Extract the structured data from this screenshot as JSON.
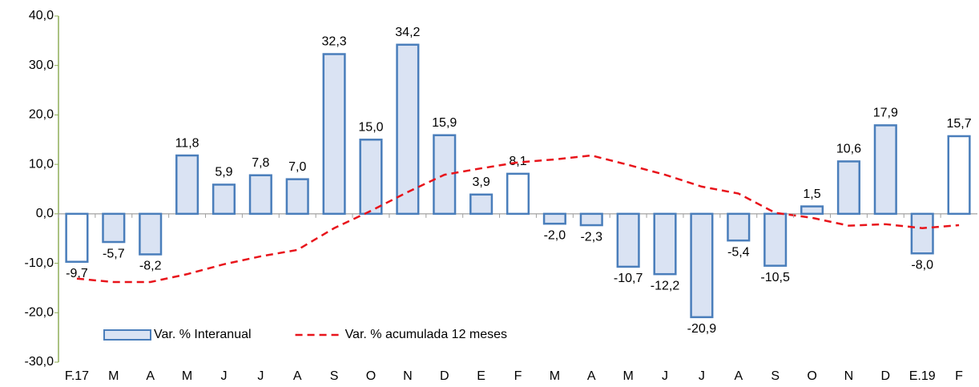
{
  "chart_data": {
    "type": "bar_line",
    "categories": [
      "F.17",
      "M",
      "A",
      "M",
      "J",
      "J",
      "A",
      "S",
      "O",
      "N",
      "D",
      "E",
      "F",
      "M",
      "A",
      "M",
      "J",
      "J",
      "A",
      "S",
      "O",
      "N",
      "D",
      "E.19",
      "F"
    ],
    "series": [
      {
        "name": "Var. % Interanual",
        "type": "bar",
        "color": "#4a7ebb",
        "fills": [
          "#ffffff",
          "#dae3f3",
          "#dae3f3",
          "#dae3f3",
          "#dae3f3",
          "#dae3f3",
          "#dae3f3",
          "#dae3f3",
          "#dae3f3",
          "#dae3f3",
          "#dae3f3",
          "#dae3f3",
          "#ffffff",
          "#dae3f3",
          "#dae3f3",
          "#dae3f3",
          "#dae3f3",
          "#dae3f3",
          "#dae3f3",
          "#dae3f3",
          "#dae3f3",
          "#dae3f3",
          "#dae3f3",
          "#dae3f3",
          "#ffffff"
        ],
        "values": [
          -9.7,
          -5.7,
          -8.2,
          11.8,
          5.9,
          7.8,
          7.0,
          32.3,
          15.0,
          34.2,
          15.9,
          3.9,
          8.1,
          -2.0,
          -2.3,
          -10.7,
          -12.2,
          -20.9,
          -5.4,
          -10.5,
          1.5,
          10.6,
          17.9,
          -8.0,
          15.7
        ],
        "value_labels": [
          "-9,7",
          "-5,7",
          "-8,2",
          "11,8",
          "5,9",
          "7,8",
          "7,0",
          "32,3",
          "15,0",
          "34,2",
          "15,9",
          "3,9",
          "8,1",
          "-2,0",
          "-2,3",
          "-10,7",
          "-12,2",
          "-20,9",
          "-5,4",
          "-10,5",
          "1,5",
          "10,6",
          "17,9",
          "-8,0",
          "15,7"
        ]
      },
      {
        "name": "Var. % acumulada 12 meses",
        "type": "line",
        "color": "#e8141b",
        "dashed": true,
        "values": [
          -13.1,
          -13.8,
          -13.8,
          -12.2,
          -10.2,
          -8.6,
          -7.3,
          -2.9,
          0.6,
          4.4,
          7.9,
          9.2,
          10.4,
          11.0,
          11.8,
          9.9,
          7.9,
          5.5,
          4.1,
          0.2,
          -0.8,
          -2.4,
          -2.1,
          -2.9,
          -2.3
        ]
      }
    ],
    "ylim": [
      -30,
      40
    ],
    "yticks": [
      {
        "value": -30,
        "label": "-30,0"
      },
      {
        "value": -20,
        "label": "-20,0"
      },
      {
        "value": -10,
        "label": "-10,0"
      },
      {
        "value": 0,
        "label": "0,0"
      },
      {
        "value": 10,
        "label": "10,0"
      },
      {
        "value": 20,
        "label": "20,0"
      },
      {
        "value": 30,
        "label": "30,0"
      },
      {
        "value": 40,
        "label": "40,0"
      }
    ],
    "legend": "bottom-left"
  }
}
